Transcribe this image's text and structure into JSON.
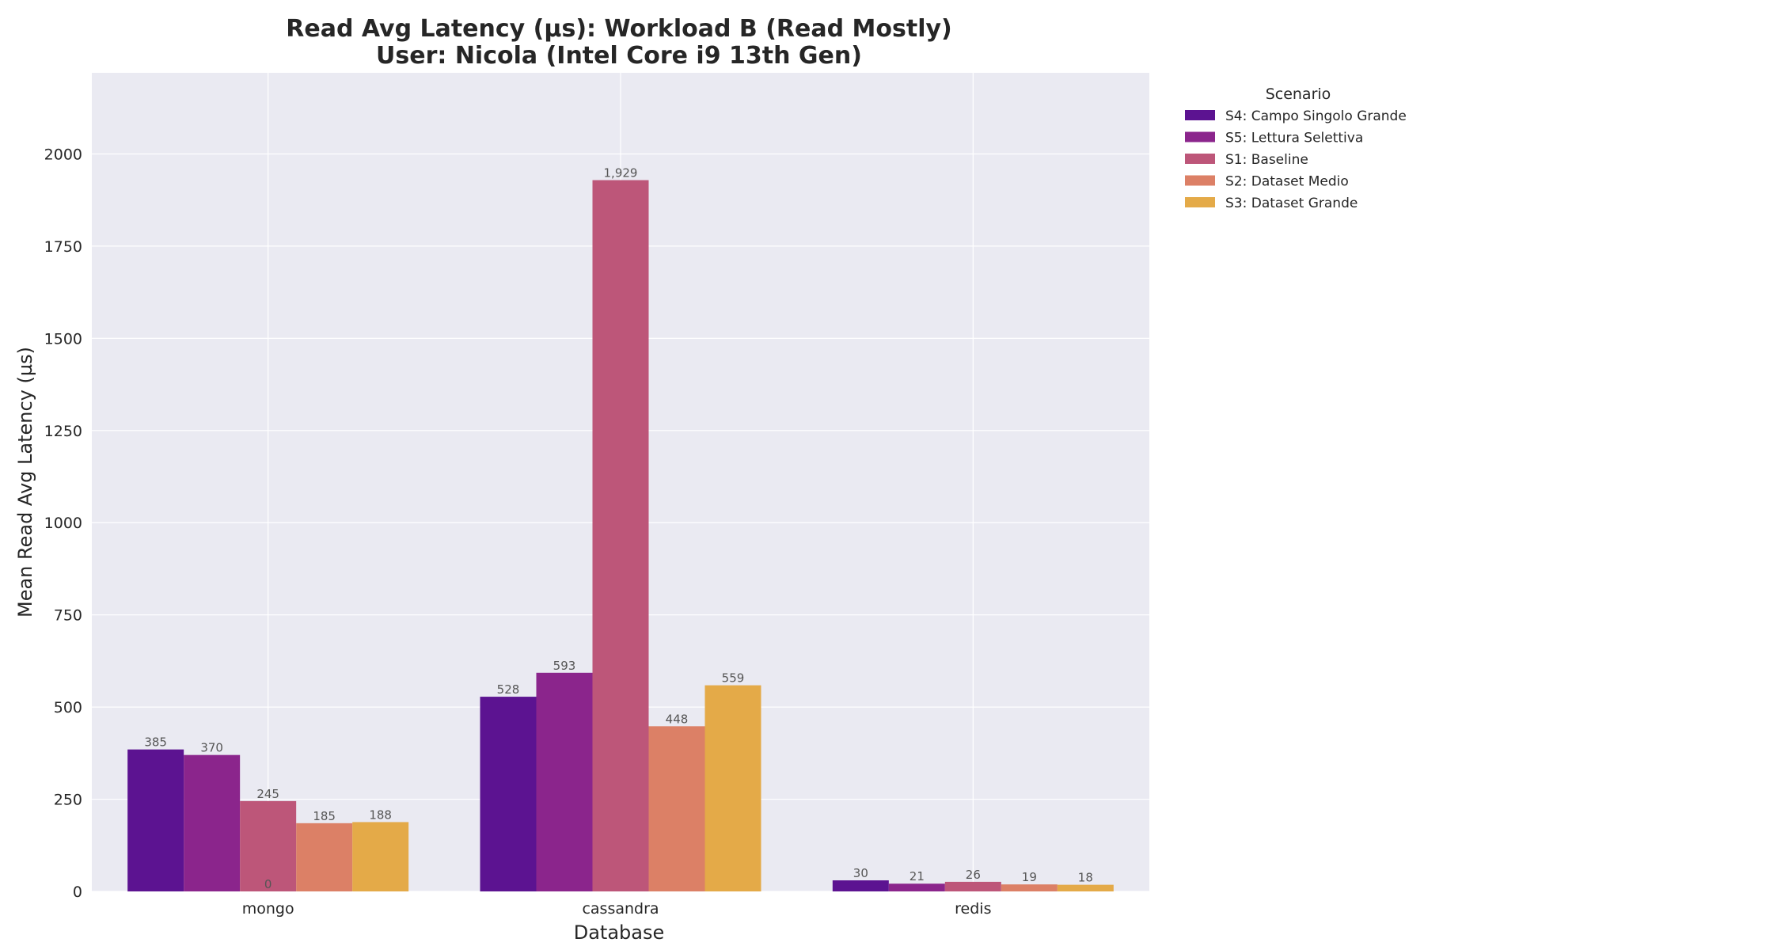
{
  "chart_data": {
    "type": "bar",
    "title": "Read Avg Latency (µs): Workload B (Read Mostly)",
    "subtitle": "User: Nicola (Intel Core i9 13th Gen)",
    "xlabel": "Database",
    "ylabel": "Mean Read Avg Latency (µs)",
    "categories": [
      "mongo",
      "cassandra",
      "redis"
    ],
    "ylim": [
      0,
      2220
    ],
    "yticks": [
      0,
      250,
      500,
      750,
      1000,
      1250,
      1500,
      1750,
      2000
    ],
    "grid": true,
    "legend": {
      "title": "Scenario",
      "placement": "outside-top-right"
    },
    "series": [
      {
        "name": "S4: Campo Singolo Grande",
        "color": "#5c1391",
        "values": [
          385,
          528,
          30
        ],
        "labels": [
          "385",
          "528",
          "30"
        ]
      },
      {
        "name": "S5: Lettura Selettiva",
        "color": "#8b258c",
        "values": [
          370,
          593,
          21
        ],
        "labels": [
          "370",
          "593",
          "21"
        ]
      },
      {
        "name": "S1: Baseline",
        "color": "#bd5679",
        "values": [
          245,
          1929,
          26
        ],
        "labels": [
          "245",
          "1,929",
          "26"
        ]
      },
      {
        "name": "S2: Dataset Medio",
        "color": "#dc8066",
        "values": [
          185,
          448,
          19
        ],
        "labels": [
          "185",
          "448",
          "19"
        ]
      },
      {
        "name": "S3: Dataset Grande",
        "color": "#e4aa48",
        "values": [
          188,
          559,
          18
        ],
        "labels": [
          "188",
          "559",
          "18"
        ]
      }
    ],
    "annotations": [
      {
        "text": "0",
        "category": "mongo",
        "value": 0
      }
    ]
  }
}
